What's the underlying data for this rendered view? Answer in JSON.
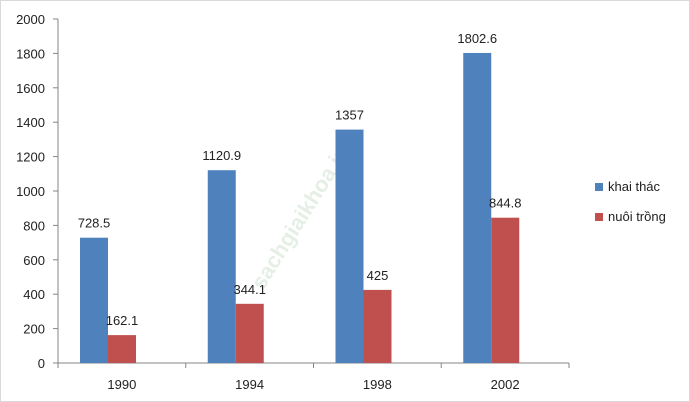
{
  "chart_data": {
    "type": "bar",
    "title": "",
    "xlabel": "",
    "ylabel": "",
    "categories": [
      "1990",
      "1994",
      "1998",
      "2002"
    ],
    "series": [
      {
        "name": "khai thác",
        "values": [
          728.5,
          1120.9,
          1357,
          1802.6
        ],
        "color": "#4f81bd"
      },
      {
        "name": "nuôi trồng",
        "values": [
          162.1,
          344.1,
          425,
          844.8
        ],
        "color": "#c0504d"
      }
    ],
    "data_labels": [
      [
        "728.5",
        "1120.9",
        "1357",
        "1802.6"
      ],
      [
        "162.1",
        "344.1",
        "425",
        "844.8"
      ]
    ],
    "ylim": [
      0,
      2000
    ],
    "yticks": [
      "0",
      "200",
      "400",
      "600",
      "800",
      "1000",
      "1200",
      "1400",
      "1600",
      "1800",
      "2000"
    ],
    "grid": false,
    "legend_position": "right"
  },
  "watermark": "loigiaihay... sachgiaikhoa.info",
  "watermark_text": "sachgiaikhoa.info"
}
